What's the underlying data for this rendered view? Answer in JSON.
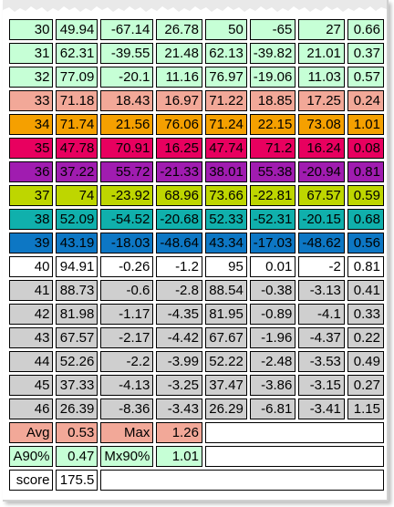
{
  "colors": {
    "mint": "#c6ffd6",
    "salmon": "#f2a898",
    "orange": "#f5a000",
    "crimson": "#e8005f",
    "purple": "#a01cb0",
    "lime": "#bed600",
    "teal": "#10b0ac",
    "blue": "#0d77c4",
    "white": "#ffffff",
    "gray": "#cfcfcf"
  },
  "rows": [
    {
      "bg": "mint",
      "cells": [
        "30",
        "49.94",
        "-67.14",
        "26.78",
        "50",
        "-65",
        "27",
        "0.66"
      ]
    },
    {
      "bg": "mint",
      "cells": [
        "31",
        "62.31",
        "-39.55",
        "21.48",
        "62.13",
        "-39.82",
        "21.01",
        "0.37"
      ]
    },
    {
      "bg": "mint",
      "cells": [
        "32",
        "77.09",
        "-20.1",
        "11.16",
        "76.97",
        "-19.06",
        "11.03",
        "0.57"
      ]
    },
    {
      "bg": "salmon",
      "cells": [
        "33",
        "71.18",
        "18.43",
        "16.97",
        "71.22",
        "18.85",
        "17.25",
        "0.24"
      ]
    },
    {
      "bg": "orange",
      "cells": [
        "34",
        "71.74",
        "21.56",
        "76.06",
        "71.24",
        "22.15",
        "73.08",
        "1.01"
      ]
    },
    {
      "bg": "crimson",
      "cells": [
        "35",
        "47.78",
        "70.91",
        "16.25",
        "47.74",
        "71.2",
        "16.24",
        "0.08"
      ]
    },
    {
      "bg": "purple",
      "cells": [
        "36",
        "37.22",
        "55.72",
        "-21.33",
        "38.01",
        "55.38",
        "-20.94",
        "0.81"
      ]
    },
    {
      "bg": "lime",
      "cells": [
        "37",
        "74",
        "-23.92",
        "68.96",
        "73.66",
        "-22.81",
        "67.57",
        "0.59"
      ]
    },
    {
      "bg": "teal",
      "cells": [
        "38",
        "52.09",
        "-54.52",
        "-20.68",
        "52.33",
        "-52.31",
        "-20.15",
        "0.68"
      ]
    },
    {
      "bg": "blue",
      "cells": [
        "39",
        "43.19",
        "-18.03",
        "-48.64",
        "43.34",
        "-17.03",
        "-48.62",
        "0.56"
      ]
    },
    {
      "bg": "white",
      "cells": [
        "40",
        "94.91",
        "-0.26",
        "-1.2",
        "95",
        "0.01",
        "-2",
        "0.81"
      ]
    },
    {
      "bg": "gray",
      "cells": [
        "41",
        "88.73",
        "-0.6",
        "-2.8",
        "88.54",
        "-0.38",
        "-3.13",
        "0.41"
      ]
    },
    {
      "bg": "gray",
      "cells": [
        "42",
        "81.98",
        "-1.17",
        "-4.35",
        "81.95",
        "-0.89",
        "-4.1",
        "0.33"
      ]
    },
    {
      "bg": "gray",
      "cells": [
        "43",
        "67.57",
        "-2.17",
        "-4.42",
        "67.67",
        "-1.96",
        "-4.37",
        "0.22"
      ]
    },
    {
      "bg": "gray",
      "cells": [
        "44",
        "52.26",
        "-2.2",
        "-3.99",
        "52.22",
        "-2.48",
        "-3.53",
        "0.49"
      ]
    },
    {
      "bg": "gray",
      "cells": [
        "45",
        "37.33",
        "-4.13",
        "-3.25",
        "37.47",
        "-3.86",
        "-3.15",
        "0.27"
      ]
    },
    {
      "bg": "gray",
      "cells": [
        "46",
        "26.39",
        "-8.36",
        "-3.43",
        "26.29",
        "-6.81",
        "-3.41",
        "1.15"
      ]
    }
  ],
  "summary": {
    "avg_label": "Avg",
    "avg_value": "0.53",
    "max_label": "Max",
    "max_value": "1.26",
    "a90_label": "A90%",
    "a90_value": "0.47",
    "mx90_label": "Mx90%",
    "mx90_value": "1.01",
    "score_label": "score",
    "score_value": "175.5"
  }
}
